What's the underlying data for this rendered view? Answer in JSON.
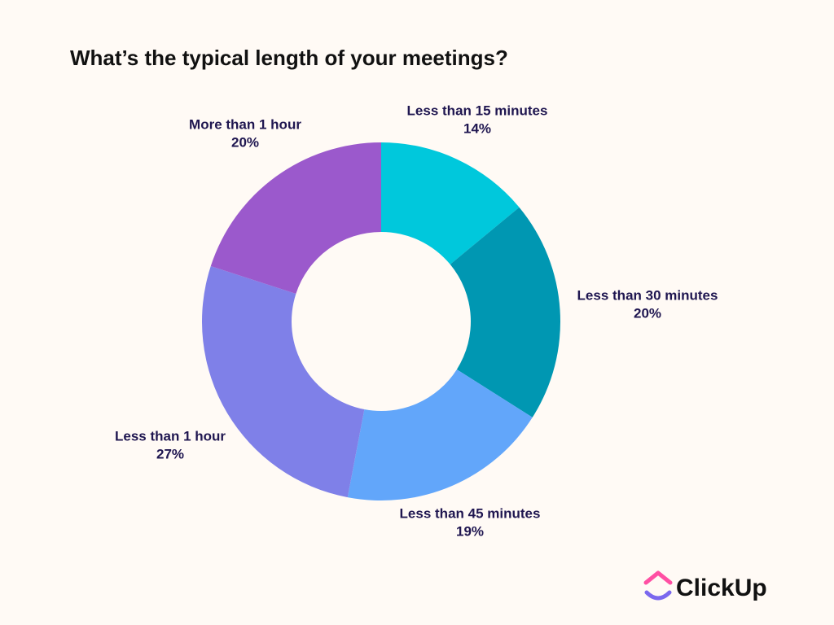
{
  "chart_data": {
    "type": "donut",
    "title": "What’s the typical length of your meetings?",
    "categories": [
      "Less than 15 minutes",
      "Less than 30 minutes",
      "Less than 45 minutes",
      "Less than 1 hour",
      "More than 1 hour"
    ],
    "values": [
      14,
      20,
      19,
      27,
      20
    ],
    "value_labels": [
      "14%",
      "20%",
      "19%",
      "27%",
      "20%"
    ],
    "colors": [
      "#00c8dc",
      "#0097b2",
      "#62a6fa",
      "#7f80e8",
      "#9b59cc"
    ],
    "brand": "ClickUp"
  }
}
